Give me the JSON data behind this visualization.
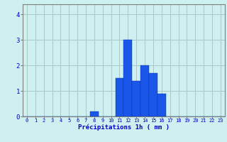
{
  "hours": [
    0,
    1,
    2,
    3,
    4,
    5,
    6,
    7,
    8,
    9,
    10,
    11,
    12,
    13,
    14,
    15,
    16,
    17,
    18,
    19,
    20,
    21,
    22,
    23
  ],
  "values": [
    0,
    0,
    0,
    0,
    0,
    0,
    0,
    0,
    0.2,
    0,
    0,
    1.5,
    3.0,
    1.4,
    2.0,
    1.7,
    0.9,
    0,
    0,
    0,
    0,
    0,
    0,
    0
  ],
  "bar_color": "#1a56e8",
  "background_color": "#cef0f0",
  "grid_color": "#a8c8c8",
  "xlabel": "Précipitations 1h ( mm )",
  "xlabel_color": "#0000cc",
  "tick_color": "#0000cc",
  "axis_color": "#808080",
  "ylim": [
    0,
    4.4
  ],
  "yticks": [
    0,
    1,
    2,
    3,
    4
  ],
  "figsize": [
    3.2,
    2.0
  ],
  "dpi": 100
}
